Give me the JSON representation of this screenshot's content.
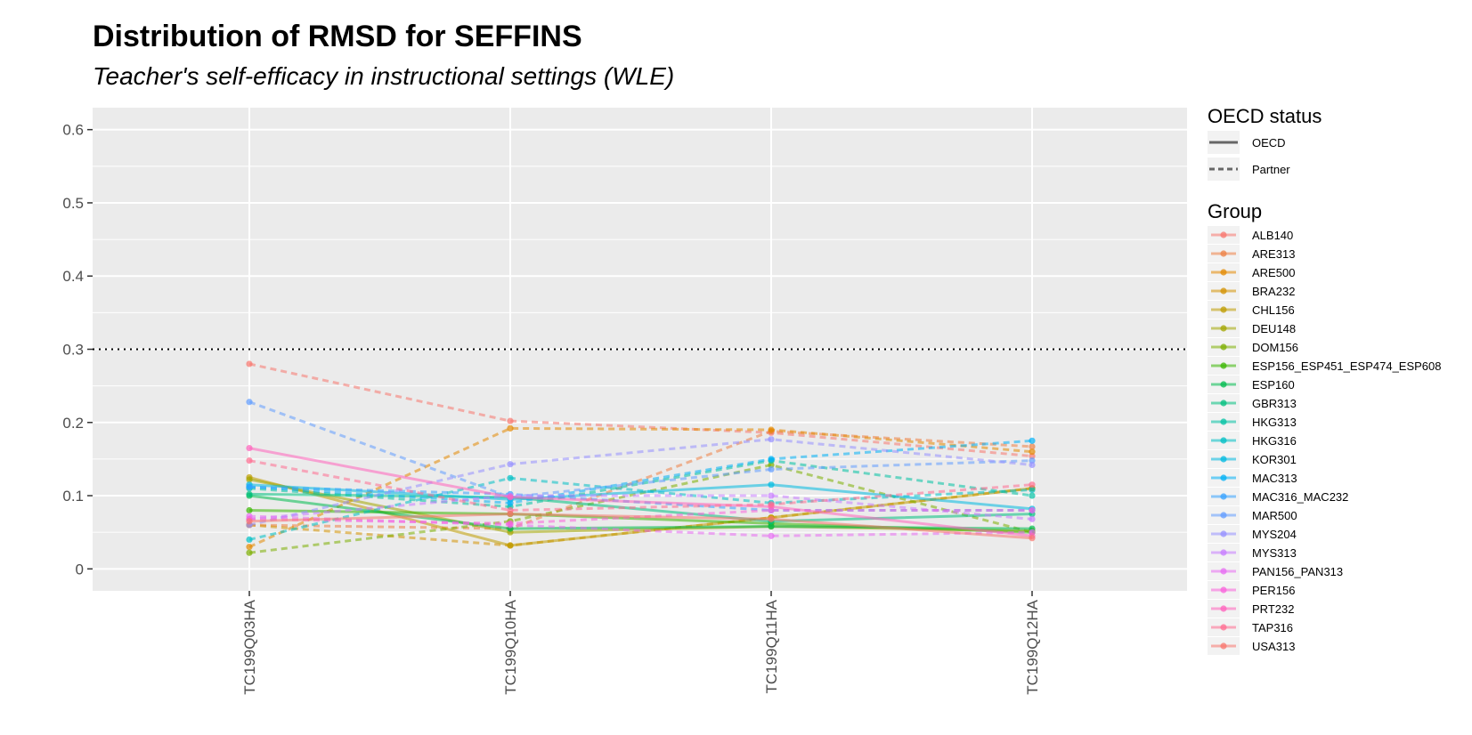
{
  "chart_data": {
    "type": "line",
    "title": "Distribution of RMSD for SEFFINS",
    "subtitle": "Teacher's self-efficacy in instructional settings (WLE)",
    "xlabel": "",
    "ylabel": "",
    "categories": [
      "TC199Q03HA",
      "TC199Q10HA",
      "TC199Q11HA",
      "TC199Q12HA"
    ],
    "ylim": [
      -0.03,
      0.63
    ],
    "yticks": [
      0,
      0.1,
      0.2,
      0.3,
      0.4,
      0.5,
      0.6
    ],
    "ytick_labels": [
      "0",
      "0.1",
      "0.2",
      "0.3",
      "0.4",
      "0.5",
      "0.6"
    ],
    "reference_line": {
      "y": 0.3,
      "style": "dotted"
    },
    "grid": true,
    "legend_position": "right",
    "linetype_legend": {
      "title": "OECD status",
      "entries": [
        {
          "label": "OECD",
          "dash": "solid"
        },
        {
          "label": "Partner",
          "dash": "dashed"
        }
      ]
    },
    "color_legend_title": "Group",
    "series": [
      {
        "name": "ALB140",
        "color": "#F8766D",
        "status": "Partner",
        "values": [
          0.28,
          0.202,
          0.186,
          0.154
        ]
      },
      {
        "name": "ARE313",
        "color": "#EE8043",
        "status": "Partner",
        "values": [
          0.06,
          0.055,
          0.188,
          0.167
        ]
      },
      {
        "name": "ARE500",
        "color": "#E38900",
        "status": "Partner",
        "values": [
          0.03,
          0.192,
          0.19,
          0.16
        ]
      },
      {
        "name": "BRA232",
        "color": "#D39200",
        "status": "Partner",
        "values": [
          0.06,
          0.032,
          0.07,
          0.11
        ]
      },
      {
        "name": "CHL156",
        "color": "#BF9C00",
        "status": "OECD",
        "values": [
          0.125,
          0.032,
          0.07,
          0.11
        ]
      },
      {
        "name": "DEU148",
        "color": "#A3A500",
        "status": "OECD",
        "values": [
          0.122,
          0.05,
          0.058,
          0.052
        ]
      },
      {
        "name": "DOM156",
        "color": "#7CAE00",
        "status": "Partner",
        "values": [
          0.022,
          0.065,
          0.142,
          0.05
        ]
      },
      {
        "name": "ESP156_ESP451_ESP474_ESP608",
        "color": "#39B600",
        "status": "OECD",
        "values": [
          0.08,
          0.075,
          0.062,
          0.05
        ]
      },
      {
        "name": "ESP160",
        "color": "#00BB4E",
        "status": "OECD",
        "values": [
          0.1,
          0.055,
          0.058,
          0.055
        ]
      },
      {
        "name": "GBR313",
        "color": "#00BF7D",
        "status": "OECD",
        "values": [
          0.102,
          0.098,
          0.065,
          0.075
        ]
      },
      {
        "name": "HKG313",
        "color": "#00C1A3",
        "status": "Partner",
        "values": [
          0.11,
          0.085,
          0.148,
          0.1
        ]
      },
      {
        "name": "HKG316",
        "color": "#00BFC4",
        "status": "Partner",
        "values": [
          0.04,
          0.124,
          0.09,
          0.108
        ]
      },
      {
        "name": "KOR301",
        "color": "#00BAE0",
        "status": "OECD",
        "values": [
          0.115,
          0.095,
          0.115,
          0.082
        ]
      },
      {
        "name": "MAC313",
        "color": "#00B0F6",
        "status": "Partner",
        "values": [
          0.112,
          0.09,
          0.15,
          0.175
        ]
      },
      {
        "name": "MAC316_MAC232",
        "color": "#35A2FF",
        "status": "Partner",
        "values": [
          0.112,
          0.102,
          0.08,
          0.08
        ]
      },
      {
        "name": "MAR500",
        "color": "#619CFF",
        "status": "Partner",
        "values": [
          0.228,
          0.098,
          0.136,
          0.148
        ]
      },
      {
        "name": "MYS204",
        "color": "#9590FF",
        "status": "Partner",
        "values": [
          0.06,
          0.143,
          0.177,
          0.142
        ]
      },
      {
        "name": "MYS313",
        "color": "#C77CFF",
        "status": "Partner",
        "values": [
          0.068,
          0.1,
          0.1,
          0.068
        ]
      },
      {
        "name": "PAN156_PAN313",
        "color": "#E76BF3",
        "status": "Partner",
        "values": [
          0.072,
          0.06,
          0.045,
          0.05
        ]
      },
      {
        "name": "PER156",
        "color": "#FA62DB",
        "status": "Partner",
        "values": [
          0.068,
          0.062,
          0.08,
          0.08
        ]
      },
      {
        "name": "PRT232",
        "color": "#FF62BC",
        "status": "OECD",
        "values": [
          0.165,
          0.098,
          0.085,
          0.045
        ]
      },
      {
        "name": "TAP316",
        "color": "#FF6C90",
        "status": "Partner",
        "values": [
          0.148,
          0.08,
          0.088,
          0.115
        ]
      },
      {
        "name": "USA313",
        "color": "#F8766D",
        "status": "OECD",
        "values": [
          0.065,
          0.075,
          0.068,
          0.042
        ]
      }
    ]
  }
}
